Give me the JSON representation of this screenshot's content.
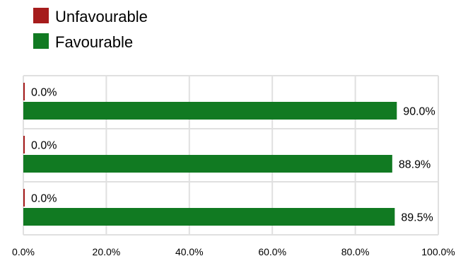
{
  "chart_data": {
    "type": "bar",
    "orientation": "horizontal",
    "stacked": false,
    "categories": [
      "",
      "",
      ""
    ],
    "series": [
      {
        "name": "Unfavourable",
        "color": "#a61c1c",
        "values": [
          0.0,
          0.0,
          0.0
        ],
        "labels": [
          "0.0%",
          "0.0%",
          "0.0%"
        ]
      },
      {
        "name": "Favourable",
        "color": "#117a22",
        "values": [
          90.0,
          88.9,
          89.5
        ],
        "labels": [
          "90.0%",
          "88.9%",
          "89.5%"
        ]
      }
    ],
    "xlim": [
      0,
      100
    ],
    "x_ticks": [
      "0.0%",
      "20.0%",
      "40.0%",
      "60.0%",
      "80.0%",
      "100.0%"
    ],
    "grid": true,
    "legend_position": "top-left",
    "title": "",
    "xlabel": "",
    "ylabel": ""
  }
}
